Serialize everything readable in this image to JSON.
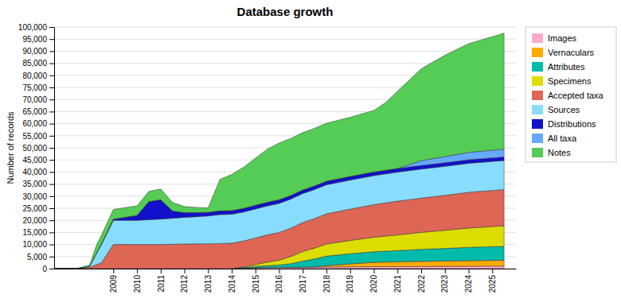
{
  "chart_data": {
    "type": "area",
    "stacked": true,
    "title": "Database growth",
    "ylabel": "Number of records",
    "grid": "y",
    "legend": "right",
    "xlim": [
      2006.5,
      2026.0
    ],
    "xticks": [
      2009,
      2010,
      2011,
      2012,
      2013,
      2014,
      2015,
      2016,
      2017,
      2018,
      2019,
      2020,
      2021,
      2022,
      2023,
      2024,
      2025
    ],
    "ylim": [
      0,
      100000
    ],
    "yticks": [
      0,
      {
        "value": 5000,
        "label": "5,000"
      },
      {
        "value": 10000,
        "label": "10,000"
      },
      {
        "value": 15000,
        "label": "15,000"
      },
      {
        "value": 20000,
        "label": "20,000"
      },
      {
        "value": 25000,
        "label": "25,000"
      },
      {
        "value": 30000,
        "label": "30,000"
      },
      {
        "value": 35000,
        "label": "35,000"
      },
      {
        "value": 40000,
        "label": "40,000"
      },
      {
        "value": 45000,
        "label": "45,000"
      },
      {
        "value": 50000,
        "label": "50,000"
      },
      {
        "value": 55000,
        "label": "55,000"
      },
      {
        "value": 60000,
        "label": "60,000"
      },
      {
        "value": 65000,
        "label": "65,000"
      },
      {
        "value": 70000,
        "label": "70,000"
      },
      {
        "value": 75000,
        "label": "75,000"
      },
      {
        "value": 80000,
        "label": "80,000"
      },
      {
        "value": 85000,
        "label": "85,000"
      },
      {
        "value": 90000,
        "label": "90,000"
      },
      {
        "value": 95000,
        "label": "95,000"
      },
      {
        "value": 100000,
        "label": "100,000"
      }
    ],
    "series": [
      {
        "name": "Images",
        "color": "#ffaacc",
        "x": [
          2006.5,
          2008.0,
          2009.0,
          2010.0,
          2011.0,
          2012.0,
          2013.0,
          2014.0,
          2014.5,
          2015.0,
          2016.0,
          2017.0,
          2018.0,
          2019.0,
          2020.0,
          2021.0,
          2022.0,
          2023.0,
          2024.0,
          2025.5
        ],
        "values": [
          0,
          0,
          0,
          0,
          0,
          0,
          0,
          0,
          200,
          400,
          500,
          600,
          700,
          750,
          800,
          850,
          900,
          950,
          1000,
          1050
        ]
      },
      {
        "name": "Vernaculars",
        "color": "#ffaa00",
        "x": [
          2006.5,
          2008.0,
          2009.0,
          2010.0,
          2011.0,
          2012.0,
          2013.0,
          2014.0,
          2015.0,
          2016.0,
          2017.0,
          2017.5,
          2018.0,
          2019.0,
          2020.0,
          2021.0,
          2022.0,
          2023.0,
          2024.0,
          2025.5
        ],
        "values": [
          0,
          0,
          0,
          0,
          0,
          0,
          0,
          0,
          0,
          0,
          0,
          100,
          500,
          1200,
          1800,
          2000,
          2100,
          2200,
          2300,
          2400
        ]
      },
      {
        "name": "Attributes",
        "color": "#00bbaa",
        "x": [
          2006.5,
          2008.0,
          2009.0,
          2010.0,
          2011.0,
          2012.0,
          2013.0,
          2014.0,
          2014.3,
          2015.0,
          2016.0,
          2016.5,
          2017.0,
          2018.0,
          2019.0,
          2020.0,
          2021.0,
          2022.0,
          2023.0,
          2024.0,
          2025.5
        ],
        "values": [
          0,
          0,
          0,
          0,
          0,
          0,
          0,
          0,
          200,
          500,
          1000,
          1500,
          2500,
          4000,
          4200,
          4400,
          4600,
          5000,
          5200,
          5500,
          5800
        ]
      },
      {
        "name": "Specimens",
        "color": "#dddd00",
        "x": [
          2006.5,
          2008.0,
          2009.0,
          2010.0,
          2011.0,
          2012.0,
          2013.0,
          2014.0,
          2014.5,
          2015.0,
          2015.5,
          2016.0,
          2016.5,
          2017.0,
          2018.0,
          2019.0,
          2020.0,
          2021.0,
          2022.0,
          2023.0,
          2024.0,
          2025.5
        ],
        "values": [
          0,
          0,
          0,
          0,
          0,
          0,
          0,
          0,
          200,
          800,
          1500,
          2000,
          3000,
          4000,
          5000,
          5500,
          6000,
          6500,
          7000,
          7500,
          8000,
          8500
        ]
      },
      {
        "name": "Accepted taxa",
        "color": "#dd6655",
        "x": [
          2006.5,
          2007.5,
          2008.0,
          2008.5,
          2009.0,
          2010.0,
          2011.0,
          2012.0,
          2013.0,
          2014.0,
          2015.0,
          2016.0,
          2017.0,
          2018.0,
          2019.0,
          2020.0,
          2021.0,
          2022.0,
          2023.0,
          2024.0,
          2025.5
        ],
        "values": [
          0,
          100,
          500,
          2500,
          10000,
          10000,
          10000,
          10200,
          10300,
          10500,
          11000,
          11500,
          12000,
          12500,
          13000,
          13500,
          14000,
          14200,
          14500,
          14800,
          15000
        ]
      },
      {
        "name": "Sources",
        "color": "#88ddff",
        "x": [
          2006.5,
          2007.5,
          2008.0,
          2008.5,
          2009.0,
          2010.0,
          2011.0,
          2012.0,
          2013.0,
          2013.5,
          2014.0,
          2015.0,
          2016.0,
          2017.0,
          2018.0,
          2019.0,
          2020.0,
          2021.0,
          2022.0,
          2023.0,
          2024.0,
          2025.5
        ],
        "values": [
          0,
          0,
          500,
          7500,
          10000,
          10000,
          10500,
          11000,
          11500,
          12000,
          12000,
          12000,
          12000,
          12000,
          12000,
          12000,
          12000,
          12000,
          12000,
          12000,
          12000,
          12000
        ]
      },
      {
        "name": "Distributions",
        "color": "#1111cc",
        "x": [
          2006.5,
          2007.5,
          2008.0,
          2008.5,
          2009.0,
          2010.0,
          2010.5,
          2011.0,
          2011.5,
          2012.0,
          2012.5,
          2013.0,
          2014.0,
          2015.0,
          2016.0,
          2017.0,
          2018.0,
          2019.0,
          2020.0,
          2021.0,
          2022.0,
          2023.0,
          2024.0,
          2025.5
        ],
        "values": [
          0,
          0,
          0,
          200,
          500,
          2000,
          7500,
          8000,
          3000,
          2000,
          1700,
          1500,
          1500,
          1500,
          1500,
          1500,
          1500,
          1500,
          1500,
          1500,
          1500,
          1500,
          1500,
          1500
        ]
      },
      {
        "name": "All taxa",
        "color": "#66aaff",
        "x": [
          2006.5,
          2008.0,
          2009.0,
          2010.0,
          2011.0,
          2012.0,
          2013.0,
          2014.0,
          2015.0,
          2016.0,
          2017.0,
          2018.0,
          2019.0,
          2020.0,
          2021.0,
          2021.5,
          2022.0,
          2023.0,
          2024.0,
          2025.5
        ],
        "values": [
          0,
          0,
          0,
          0,
          0,
          0,
          0,
          0,
          0,
          0,
          0,
          0,
          0,
          0,
          0,
          1000,
          2000,
          2500,
          3000,
          3200
        ]
      },
      {
        "name": "Notes",
        "color": "#55cc55",
        "x": [
          2006.5,
          2007.5,
          2008.0,
          2008.3,
          2009.0,
          2010.0,
          2010.5,
          2011.0,
          2012.0,
          2013.0,
          2013.5,
          2014.0,
          2014.5,
          2015.0,
          2015.5,
          2016.0,
          2017.0,
          2018.0,
          2019.0,
          2020.0,
          2020.5,
          2021.0,
          2022.0,
          2023.0,
          2024.0,
          2025.5
        ],
        "values": [
          0,
          0,
          500,
          3500,
          4000,
          4000,
          4200,
          4500,
          2500,
          1800,
          13000,
          15000,
          17000,
          19500,
          22000,
          23500,
          23700,
          24000,
          24500,
          25500,
          28000,
          32000,
          38000,
          42000,
          45000,
          48000
        ]
      }
    ]
  }
}
